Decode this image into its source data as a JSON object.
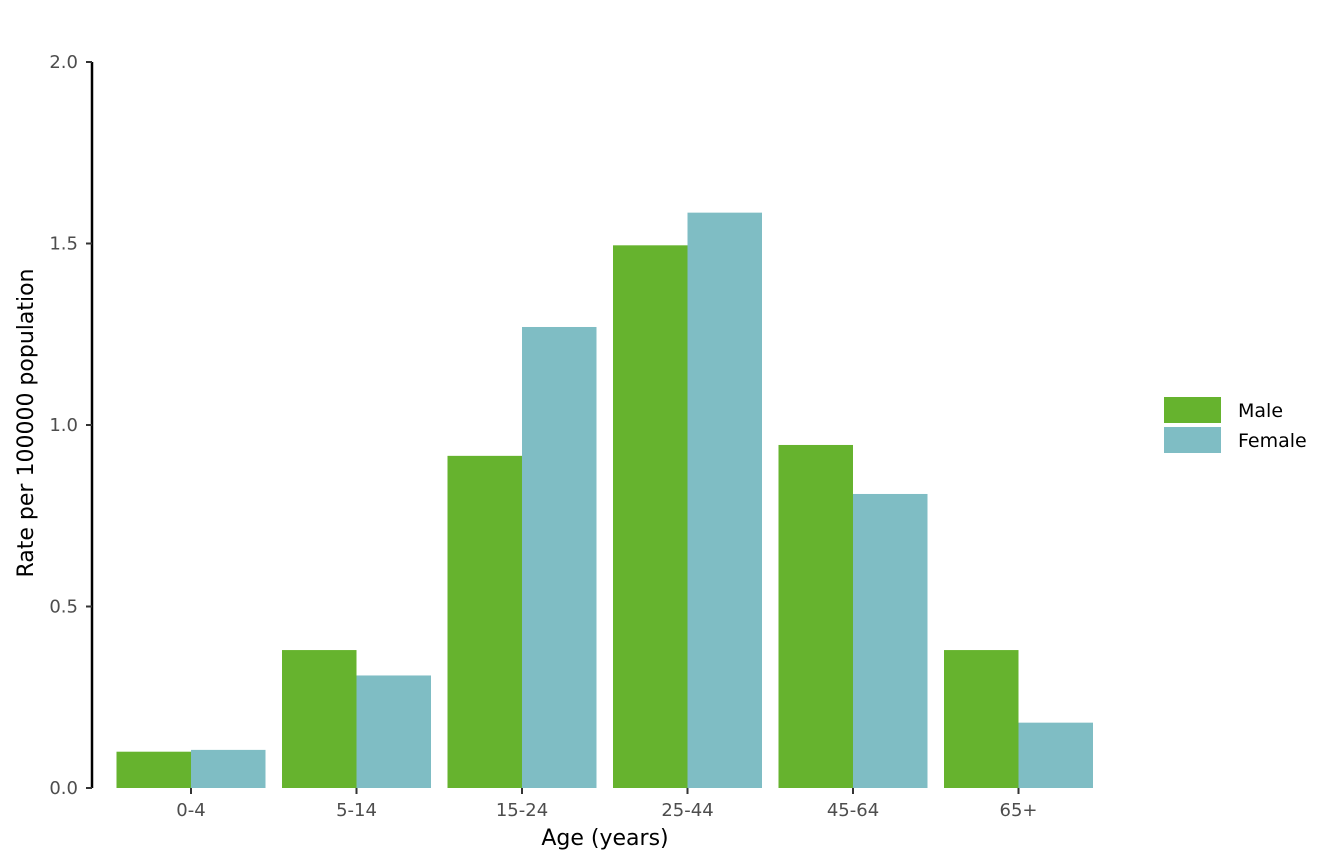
{
  "chart_data": {
    "type": "bar",
    "title": "",
    "xlabel": "Age (years)",
    "ylabel": "Rate per 100000 population",
    "categories": [
      "0-4",
      "5-14",
      "15-24",
      "25-44",
      "45-64",
      "65+"
    ],
    "series": [
      {
        "name": "Male",
        "color": "#66b32e",
        "values": [
          0.1,
          0.38,
          0.915,
          1.495,
          0.945,
          0.38
        ]
      },
      {
        "name": "Female",
        "color": "#7fbdc4",
        "values": [
          0.105,
          0.31,
          1.27,
          1.585,
          0.81,
          0.18
        ]
      }
    ],
    "ylim": [
      0,
      2
    ],
    "yticks": [
      "0.0",
      "0.5",
      "1.0",
      "1.5",
      "2.0"
    ],
    "grid": false,
    "legend_position": "right"
  }
}
